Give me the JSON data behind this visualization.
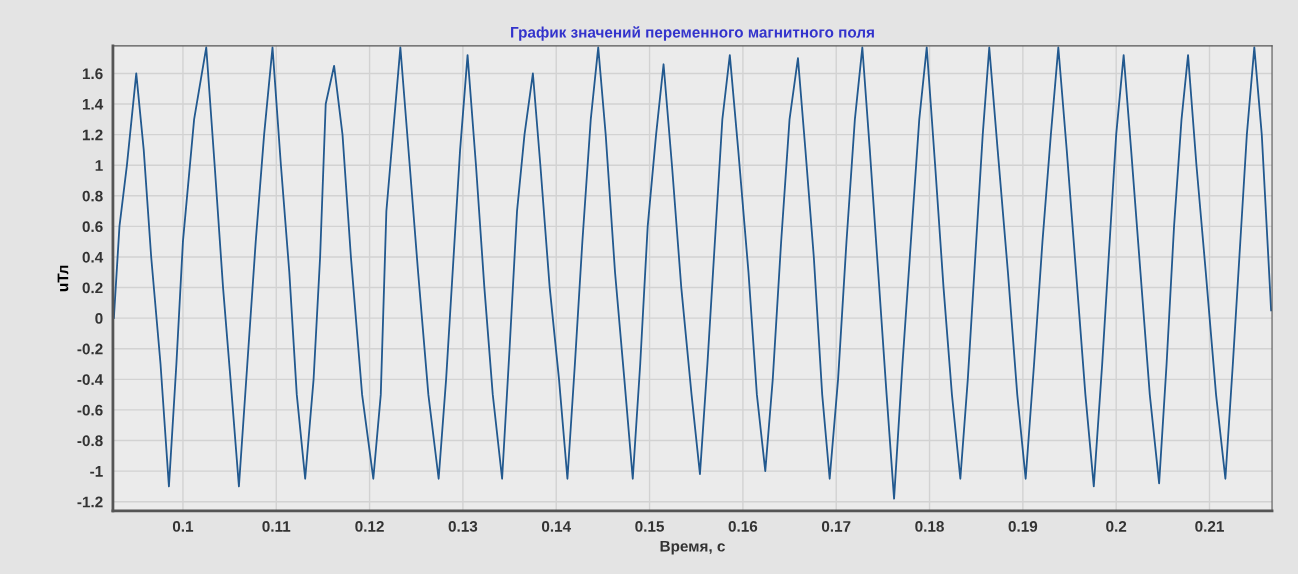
{
  "chart_data": {
    "type": "line",
    "title": "График значений переменного магнитного поля",
    "xlabel": "Время, с",
    "ylabel": "uТл",
    "xlim": [
      0.0925,
      0.2167
    ],
    "ylim": [
      -1.26,
      1.78
    ],
    "xticks": [
      0.1,
      0.11,
      0.12,
      0.13,
      0.14,
      0.15,
      0.16,
      0.17,
      0.18,
      0.19,
      0.2,
      0.21
    ],
    "yticks": [
      -1.2,
      -1,
      -0.8,
      -0.6,
      -0.4,
      -0.2,
      0,
      0.2,
      0.4,
      0.6,
      0.8,
      1,
      1.2,
      1.4,
      1.6
    ],
    "grid": true,
    "legend": false,
    "marker": "none",
    "line_style": "solid",
    "series": [
      {
        "color": "#22598f",
        "x": [
          0.0926,
          0.0932,
          0.094,
          0.095,
          0.0958,
          0.0966,
          0.0976,
          0.0985,
          0.0993,
          0.1,
          0.1012,
          0.1025,
          0.1034,
          0.1043,
          0.1051,
          0.106,
          0.1069,
          0.1078,
          0.1087,
          0.1096,
          0.1105,
          0.1114,
          0.1122,
          0.1131,
          0.114,
          0.1147,
          0.1153,
          0.1162,
          0.1171,
          0.118,
          0.1192,
          0.1204,
          0.1212,
          0.1218,
          0.1225,
          0.1233,
          0.1243,
          0.1252,
          0.1263,
          0.1274,
          0.1282,
          0.129,
          0.1297,
          0.1305,
          0.1314,
          0.1323,
          0.1332,
          0.1342,
          0.135,
          0.1358,
          0.1366,
          0.1375,
          0.1383,
          0.1393,
          0.1403,
          0.1412,
          0.142,
          0.1428,
          0.1437,
          0.1445,
          0.1453,
          0.1463,
          0.1473,
          0.1482,
          0.149,
          0.1498,
          0.1507,
          0.1515,
          0.1524,
          0.1534,
          0.1545,
          0.1554,
          0.1562,
          0.157,
          0.1578,
          0.1586,
          0.1595,
          0.1606,
          0.1615,
          0.1624,
          0.1632,
          0.1641,
          0.165,
          0.1659,
          0.1667,
          0.1676,
          0.1685,
          0.1693,
          0.1702,
          0.1711,
          0.172,
          0.1728,
          0.1736,
          0.1745,
          0.1754,
          0.1762,
          0.1771,
          0.178,
          0.1789,
          0.1797,
          0.1806,
          0.1815,
          0.1824,
          0.1833,
          0.1841,
          0.1849,
          0.1857,
          0.1864,
          0.1873,
          0.1884,
          0.1894,
          0.1903,
          0.1912,
          0.1921,
          0.193,
          0.1938,
          0.1947,
          0.1957,
          0.1967,
          0.1976,
          0.1985,
          0.1993,
          0.2,
          0.2008,
          0.2016,
          0.2026,
          0.2036,
          0.2046,
          0.2054,
          0.2062,
          0.207,
          0.2077,
          0.2086,
          0.2096,
          0.2107,
          0.2117,
          0.2125,
          0.2133,
          0.214,
          0.2148,
          0.2156,
          0.2163,
          0.2166
        ],
        "values": [
          0.0,
          0.6,
          1.0,
          1.6,
          1.1,
          0.4,
          -0.3,
          -1.1,
          -0.3,
          0.5,
          1.3,
          1.77,
          1.0,
          0.2,
          -0.4,
          -1.1,
          -0.3,
          0.5,
          1.2,
          1.77,
          1.0,
          0.3,
          -0.5,
          -1.05,
          -0.4,
          0.4,
          1.4,
          1.65,
          1.2,
          0.4,
          -0.5,
          -1.05,
          -0.5,
          0.7,
          1.2,
          1.77,
          1.0,
          0.3,
          -0.5,
          -1.05,
          -0.4,
          0.4,
          1.1,
          1.72,
          1.0,
          0.2,
          -0.5,
          -1.05,
          -0.2,
          0.7,
          1.2,
          1.6,
          1.0,
          0.2,
          -0.4,
          -1.05,
          -0.3,
          0.5,
          1.3,
          1.77,
          1.2,
          0.3,
          -0.4,
          -1.05,
          -0.3,
          0.6,
          1.2,
          1.66,
          1.0,
          0.2,
          -0.5,
          -1.02,
          -0.3,
          0.5,
          1.3,
          1.72,
          1.1,
          0.3,
          -0.5,
          -1.0,
          -0.4,
          0.5,
          1.3,
          1.7,
          1.1,
          0.4,
          -0.5,
          -1.05,
          -0.4,
          0.5,
          1.3,
          1.77,
          1.1,
          0.3,
          -0.5,
          -1.18,
          -0.3,
          0.5,
          1.3,
          1.77,
          1.0,
          0.2,
          -0.5,
          -1.05,
          -0.4,
          0.4,
          1.2,
          1.77,
          1.1,
          0.3,
          -0.5,
          -1.05,
          -0.3,
          0.5,
          1.2,
          1.77,
          1.1,
          0.3,
          -0.5,
          -1.1,
          -0.3,
          0.5,
          1.2,
          1.72,
          1.1,
          0.3,
          -0.5,
          -1.08,
          -0.3,
          0.6,
          1.3,
          1.72,
          1.0,
          0.3,
          -0.5,
          -1.05,
          -0.3,
          0.5,
          1.2,
          1.77,
          1.2,
          0.4,
          0.05
        ]
      }
    ]
  }
}
